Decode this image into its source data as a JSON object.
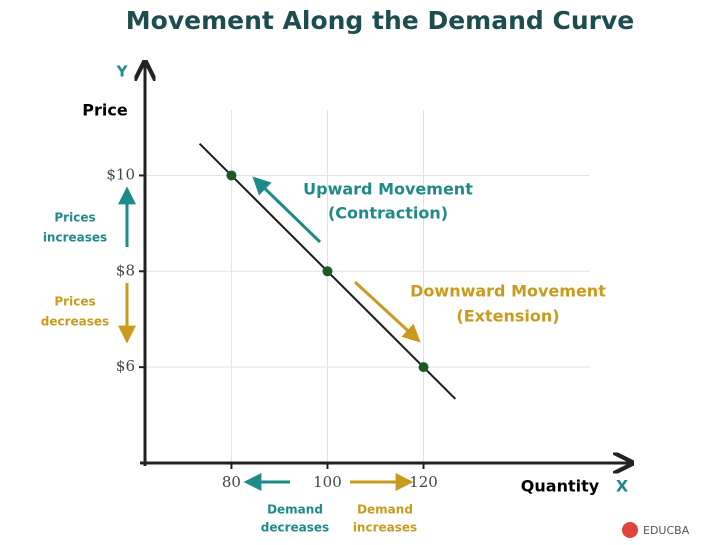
{
  "chart_data": {
    "type": "line",
    "title": "Movement Along the Demand Curve",
    "y_axis_letter": "Y",
    "y_axis_label": "Price",
    "x_axis_label": "Quantity",
    "x_axis_letter": "X",
    "x": [
      80,
      100,
      120
    ],
    "series": [
      {
        "color": "#1a1a1a",
        "values": [
          10,
          8,
          6
        ]
      }
    ],
    "xlim": [
      62,
      163
    ],
    "ylim": [
      4,
      12.2
    ],
    "xticks": [
      80,
      100,
      120
    ],
    "yticks": [
      {
        "value": 10,
        "label": "$10"
      },
      {
        "value": 8,
        "label": "$8"
      },
      {
        "value": 6,
        "label": "$6"
      }
    ],
    "point_color": "#1d5a2a",
    "annotations": {
      "upward": [
        "Upward Movement",
        "(Contraction)"
      ],
      "downward": [
        "Downward Movement",
        "(Extension)"
      ],
      "prices_up": [
        "Prices",
        "increases"
      ],
      "prices_down": [
        "Prices",
        "decreases"
      ],
      "demand_down": [
        "Demand",
        "decreases"
      ],
      "demand_up": [
        "Demand",
        "increases"
      ]
    },
    "brand": "EDUCBA"
  }
}
